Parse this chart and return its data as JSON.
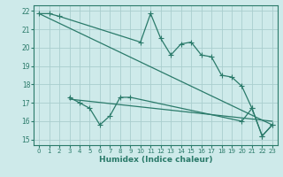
{
  "xlabel": "Humidex (Indice chaleur)",
  "ylabel": "",
  "bg_color": "#ceeaea",
  "grid_color": "#aacece",
  "line_color": "#2a7a6a",
  "xlim": [
    -0.5,
    23.5
  ],
  "ylim": [
    14.7,
    22.3
  ],
  "yticks": [
    15,
    16,
    17,
    18,
    19,
    20,
    21,
    22
  ],
  "xticks": [
    0,
    1,
    2,
    3,
    4,
    5,
    6,
    7,
    8,
    9,
    10,
    11,
    12,
    13,
    14,
    15,
    16,
    17,
    18,
    19,
    20,
    21,
    22,
    23
  ],
  "series1_x": [
    0,
    1,
    2,
    10,
    11,
    12,
    13,
    14,
    15,
    16,
    17,
    18,
    19,
    20,
    21,
    22,
    23
  ],
  "series1_y": [
    21.85,
    21.85,
    21.7,
    20.3,
    21.85,
    20.5,
    19.6,
    20.2,
    20.3,
    19.6,
    19.5,
    18.5,
    18.4,
    17.9,
    16.7,
    15.2,
    15.8
  ],
  "series2_x": [
    0,
    23
  ],
  "series2_y": [
    21.85,
    15.8
  ],
  "series3_x": [
    3,
    4,
    5,
    6,
    7,
    8,
    9,
    20,
    21,
    22,
    23
  ],
  "series3_y": [
    17.3,
    17.0,
    16.7,
    15.8,
    16.3,
    17.3,
    17.3,
    16.0,
    16.7,
    15.2,
    15.8
  ],
  "series4_x": [
    3,
    23
  ],
  "series4_y": [
    17.2,
    16.0
  ],
  "marker_size": 2.5,
  "line_width": 0.9
}
